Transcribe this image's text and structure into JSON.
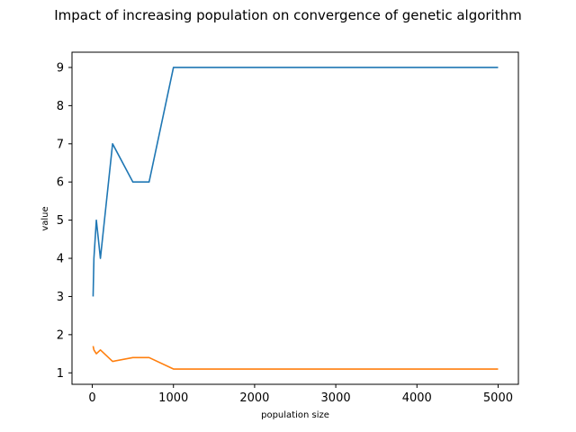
{
  "chart_data": {
    "type": "line",
    "title": "Impact of increasing population on convergence of genetic algorithm",
    "xlabel": "population size",
    "ylabel": "value",
    "xlim": [
      -250,
      5250
    ],
    "ylim": [
      0.7,
      9.4
    ],
    "xticks": [
      0,
      1000,
      2000,
      3000,
      4000,
      5000
    ],
    "yticks": [
      1,
      2,
      3,
      4,
      5,
      6,
      7,
      8,
      9
    ],
    "grid": false,
    "legend": "none",
    "series": [
      {
        "color": "#1f77b4",
        "x": [
          10,
          20,
          50,
          100,
          250,
          500,
          700,
          1000,
          2000,
          5000
        ],
        "y": [
          3,
          4,
          5,
          4,
          7,
          6,
          6,
          9,
          9,
          9
        ]
      },
      {
        "color": "#ff7f0e",
        "x": [
          10,
          20,
          50,
          100,
          250,
          500,
          700,
          1000,
          2000,
          5000
        ],
        "y": [
          1.7,
          1.6,
          1.5,
          1.6,
          1.3,
          1.4,
          1.4,
          1.1,
          1.1,
          1.1
        ]
      }
    ]
  }
}
